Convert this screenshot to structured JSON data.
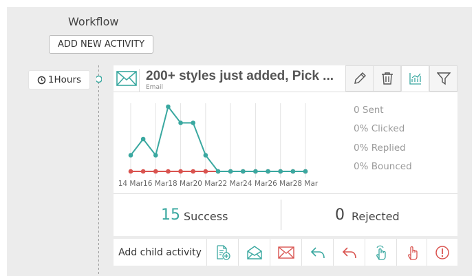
{
  "header": {
    "title": "Workflow",
    "button": "ADD NEW ACTIVITY"
  },
  "timing": {
    "label": "1Hours"
  },
  "activity": {
    "title": "200+ styles just added, Pick ...",
    "subtitle": "Email",
    "stats": [
      "0 Sent",
      "0% Clicked",
      "0% Replied",
      "0% Bounced"
    ],
    "success": {
      "value": 15,
      "label": "Success"
    },
    "rejected": {
      "value": 0,
      "label": "Rejected"
    },
    "add_child": "Add child activity"
  },
  "chart_data": {
    "type": "line",
    "categories": [
      "14 Mar",
      null,
      "16 Mar",
      null,
      "18 Mar",
      null,
      "20 Mar",
      null,
      "22 Mar",
      null,
      "24 Mar",
      null,
      "26 Mar",
      null,
      "28 Mar"
    ],
    "series": [
      {
        "color": "#d9534f",
        "values": [
          0,
          0,
          0,
          0,
          0,
          0,
          0,
          0,
          0,
          0,
          0,
          0,
          0,
          0,
          0
        ]
      },
      {
        "color": "#3aa8a0",
        "values": [
          1,
          2,
          1,
          4,
          3,
          3,
          1,
          0,
          0,
          0,
          0,
          0,
          0,
          0,
          0
        ]
      }
    ],
    "ylim": [
      0,
      4
    ],
    "grid": true
  }
}
